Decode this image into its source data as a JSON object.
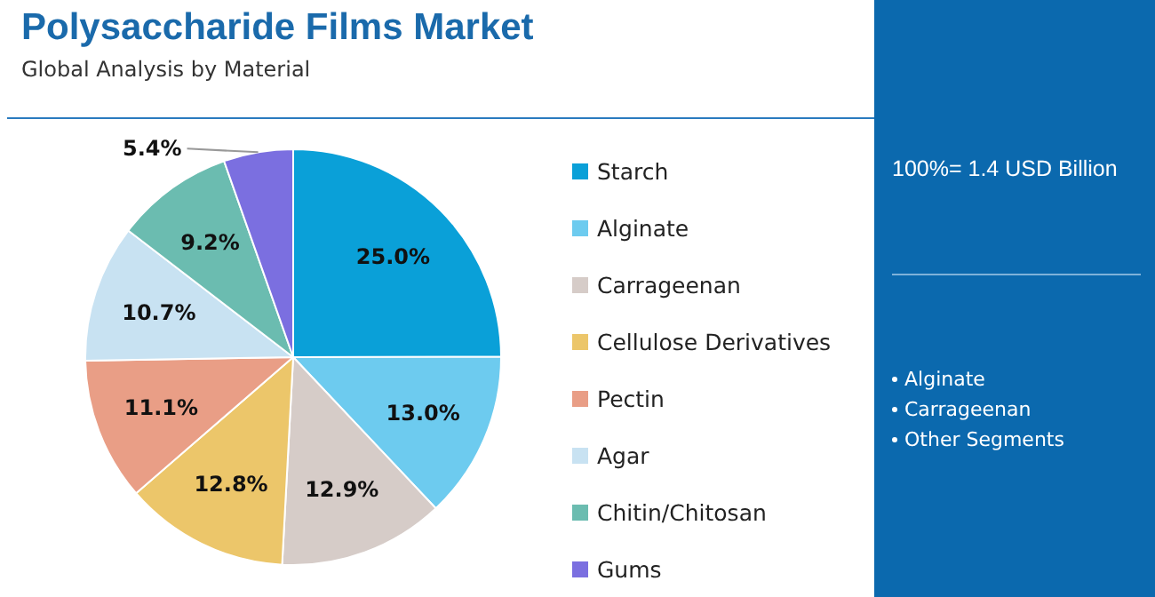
{
  "chart_data": {
    "type": "pie",
    "title": "Polysaccharide Films Market",
    "subtitle": "Global Analysis by Material",
    "categories": [
      "Starch",
      "Alginate",
      "Carrageenan",
      "Cellulose Derivatives",
      "Pectin",
      "Agar",
      "Chitin/Chitosan",
      "Gums"
    ],
    "values": [
      25.0,
      13.0,
      12.9,
      12.8,
      11.1,
      10.7,
      9.2,
      5.4
    ],
    "value_labels": [
      "25.0%",
      "13.0%",
      "12.9%",
      "12.8%",
      "11.1%",
      "10.7%",
      "9.2%",
      "5.4%"
    ],
    "colors": [
      "#0aa0d8",
      "#6dcbef",
      "#d6ccc8",
      "#ecc66a",
      "#e99e86",
      "#c8e2f2",
      "#6bbcb0",
      "#7b6fe0"
    ],
    "legend": "right",
    "annotations": [
      "100%= 1.4 USD Billion",
      "Alginate",
      "Carrageenan",
      "Other Segments"
    ]
  }
}
